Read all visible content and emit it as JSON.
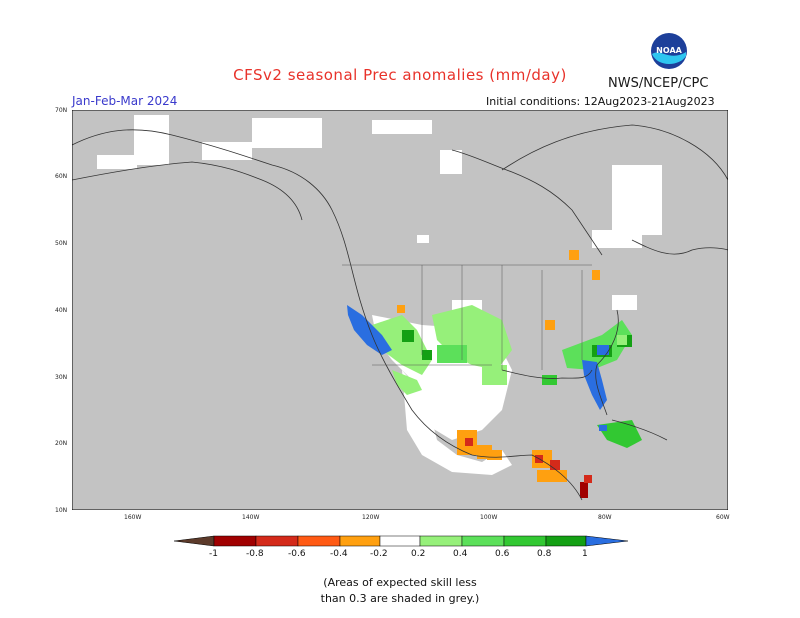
{
  "header": {
    "title": "CFSv2 seasonal Prec anomalies (mm/day)",
    "agency": "NWS/NCEP/CPC",
    "logo_text": "NOAA",
    "season": "Jan-Feb-Mar 2024",
    "initial_conditions": "Initial conditions: 12Aug2023-21Aug2023"
  },
  "map": {
    "lat_labels": [
      "70N",
      "60N",
      "50N",
      "40N",
      "30N",
      "20N",
      "10N"
    ],
    "lon_labels": [
      "160W",
      "140W",
      "120W",
      "100W",
      "80W",
      "60W"
    ],
    "colors": {
      "skill_grey": "#c3c3c3",
      "ocean_white": "#ffffff",
      "lines": "#333333"
    }
  },
  "colorbar": {
    "labels": [
      "-1",
      "-0.8",
      "-0.6",
      "-0.4",
      "-0.2",
      "0.2",
      "0.4",
      "0.6",
      "0.8",
      "1"
    ],
    "colors": [
      "#5c3a2a",
      "#a00000",
      "#d42a1a",
      "#ff5a14",
      "#ffa010",
      "#ffffff",
      "#96f07a",
      "#5ce05a",
      "#32c832",
      "#14a014",
      "#2a6ee0"
    ]
  },
  "footnote": {
    "line1": "(Areas of expected skill less",
    "line2": "than 0.3 are shaded in grey.)"
  }
}
